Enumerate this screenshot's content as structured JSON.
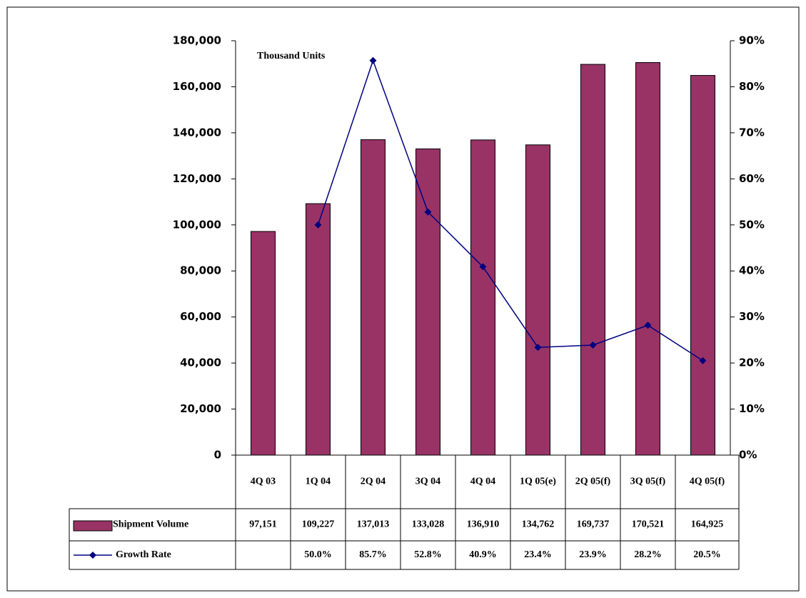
{
  "chart_data": {
    "type": "bar_line_table",
    "annotation": "Thousand Units",
    "categories": [
      "4Q 03",
      "1Q 04",
      "2Q 04",
      "3Q 04",
      "4Q 04",
      "1Q 05(e)",
      "2Q 05(f)",
      "3Q 05(f)",
      "4Q 05(f)"
    ],
    "series": [
      {
        "name": "Shipment Volume",
        "color": "#993366",
        "values": [
          97151,
          109227,
          137013,
          133028,
          136910,
          134762,
          169737,
          170521,
          164925
        ],
        "value_labels": [
          "97,151",
          "109,227",
          "137,013",
          "133,028",
          "136,910",
          "134,762",
          "169,737",
          "170,521",
          "164,925"
        ]
      },
      {
        "name": "Growth Rate",
        "color": "#000080",
        "axis": "y2",
        "values": [
          null,
          50.0,
          85.7,
          52.8,
          40.9,
          23.4,
          23.9,
          28.2,
          20.5
        ],
        "value_labels": [
          null,
          "50.0%",
          "85.7%",
          "52.8%",
          "40.9%",
          "23.4%",
          "23.9%",
          "28.2%",
          "20.5%"
        ]
      }
    ],
    "ylim": [
      0,
      180000
    ],
    "yticks": [
      {
        "value": 0,
        "label": "0"
      },
      {
        "value": 20000,
        "label": "20,000"
      },
      {
        "value": 40000,
        "label": "40,000"
      },
      {
        "value": 60000,
        "label": "60,000"
      },
      {
        "value": 80000,
        "label": "80,000"
      },
      {
        "value": 100000,
        "label": "100,000"
      },
      {
        "value": 120000,
        "label": "120,000"
      },
      {
        "value": 140000,
        "label": "140,000"
      },
      {
        "value": 160000,
        "label": "160,000"
      },
      {
        "value": 180000,
        "label": "180,000"
      }
    ],
    "y2lim": [
      0,
      90
    ],
    "y2ticks": [
      {
        "value": 0,
        "label": "0%"
      },
      {
        "value": 10,
        "label": "10%"
      },
      {
        "value": 20,
        "label": "20%"
      },
      {
        "value": 30,
        "label": "30%"
      },
      {
        "value": 40,
        "label": "40%"
      },
      {
        "value": 50,
        "label": "50%"
      },
      {
        "value": 60,
        "label": "60%"
      },
      {
        "value": 70,
        "label": "70%"
      },
      {
        "value": 80,
        "label": "80%"
      },
      {
        "value": 90,
        "label": "90%"
      }
    ]
  }
}
